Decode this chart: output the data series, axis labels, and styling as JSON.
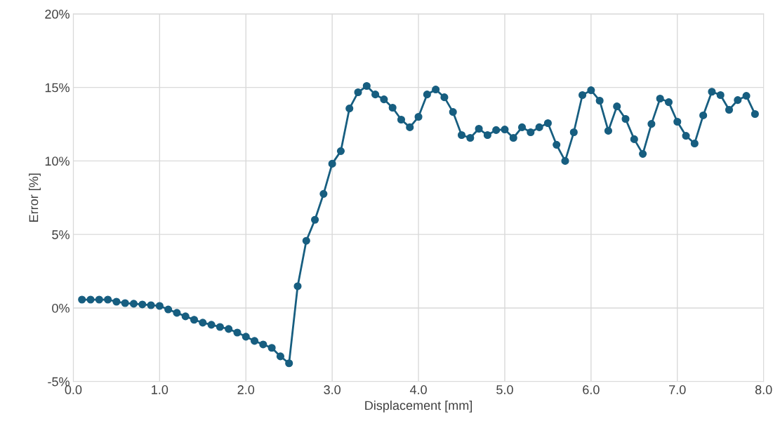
{
  "chart_data": {
    "type": "line",
    "xlabel": "Displacement [mm]",
    "ylabel": "Error [%]",
    "x": [
      0.1,
      0.2,
      0.3,
      0.4,
      0.5,
      0.6,
      0.7,
      0.8,
      0.9,
      1.0,
      1.1,
      1.2,
      1.3,
      1.4,
      1.5,
      1.6,
      1.7,
      1.8,
      1.9,
      2.0,
      2.1,
      2.2,
      2.3,
      2.4,
      2.5,
      2.6,
      2.7,
      2.8,
      2.9,
      3.0,
      3.1,
      3.2,
      3.3,
      3.4,
      3.5,
      3.6,
      3.7,
      3.8,
      3.9,
      4.0,
      4.1,
      4.2,
      4.3,
      4.4,
      4.5,
      4.6,
      4.7,
      4.8,
      4.9,
      5.0,
      5.1,
      5.2,
      5.3,
      5.4,
      5.5,
      5.6,
      5.7,
      5.8,
      5.9,
      6.0,
      6.1,
      6.2,
      6.3,
      6.4,
      6.5,
      6.6,
      6.7,
      6.8,
      6.9,
      7.0,
      7.1,
      7.2,
      7.3,
      7.4,
      7.5,
      7.6,
      7.7,
      7.8,
      7.9
    ],
    "series": [
      {
        "color": "#175e80",
        "values": [
          0.57,
          0.57,
          0.57,
          0.57,
          0.43,
          0.33,
          0.29,
          0.24,
          0.19,
          0.14,
          -0.1,
          -0.33,
          -0.57,
          -0.8,
          -1.0,
          -1.14,
          -1.29,
          -1.43,
          -1.67,
          -1.95,
          -2.24,
          -2.48,
          -2.71,
          -3.29,
          -3.76,
          1.48,
          4.57,
          6.0,
          7.76,
          9.81,
          10.67,
          13.57,
          14.67,
          15.1,
          14.52,
          14.19,
          13.62,
          12.81,
          12.29,
          13.0,
          14.52,
          14.86,
          14.33,
          13.33,
          11.76,
          11.57,
          12.19,
          11.76,
          12.1,
          12.14,
          11.57,
          12.29,
          11.95,
          12.29,
          12.57,
          11.1,
          10.0,
          11.95,
          14.48,
          14.81,
          14.1,
          12.05,
          13.71,
          12.86,
          11.48,
          10.48,
          12.52,
          14.24,
          14.0,
          12.67,
          11.71,
          11.19,
          13.1,
          14.71,
          14.48,
          13.48,
          14.14,
          14.43,
          13.19
        ]
      }
    ],
    "xlim": [
      0,
      8
    ],
    "ylim": [
      -5,
      20
    ],
    "xticks": [
      {
        "value": 0,
        "label": "0.0"
      },
      {
        "value": 1,
        "label": "1.0"
      },
      {
        "value": 2,
        "label": "2.0"
      },
      {
        "value": 3,
        "label": "3.0"
      },
      {
        "value": 4,
        "label": "4.0"
      },
      {
        "value": 5,
        "label": "5.0"
      },
      {
        "value": 6,
        "label": "6.0"
      },
      {
        "value": 7,
        "label": "7.0"
      },
      {
        "value": 8,
        "label": "8.0"
      }
    ],
    "yticks": [
      {
        "value": -5,
        "label": "-5%"
      },
      {
        "value": 0,
        "label": "0%"
      },
      {
        "value": 5,
        "label": "5%"
      },
      {
        "value": 10,
        "label": "10%"
      },
      {
        "value": 15,
        "label": "15%"
      },
      {
        "value": 20,
        "label": "20%"
      }
    ],
    "grid": true,
    "marker": "circle",
    "line_style": "solid",
    "legend": false
  }
}
